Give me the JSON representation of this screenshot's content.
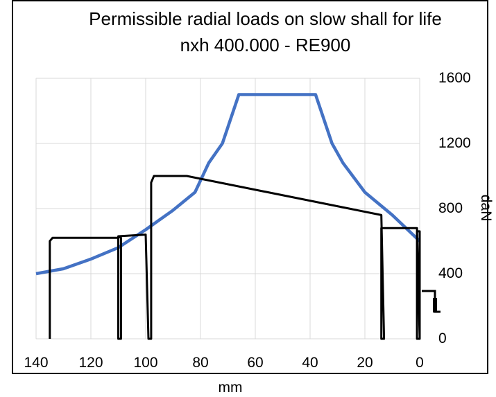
{
  "chart_data": {
    "type": "line",
    "title": "Permissible radial loads on slow shall for life",
    "subtitle": "nxh 400.000 - RE900",
    "xlabel": "mm",
    "ylabel": "daN",
    "xlim": [
      140,
      0
    ],
    "ylim": [
      0,
      1600
    ],
    "x_ticks": [
      "140",
      "120",
      "100",
      "80",
      "60",
      "40",
      "20",
      "0"
    ],
    "y_ticks": [
      "0",
      "400",
      "800",
      "1200",
      "1600"
    ],
    "grid": true,
    "series": [
      {
        "color": "#4472C4",
        "points": [
          [
            140,
            400
          ],
          [
            130,
            430
          ],
          [
            120,
            490
          ],
          [
            110,
            560
          ],
          [
            100,
            670
          ],
          [
            90,
            790
          ],
          [
            82,
            900
          ],
          [
            77,
            1080
          ],
          [
            72,
            1200
          ],
          [
            66,
            1500
          ],
          [
            38,
            1500
          ],
          [
            32,
            1200
          ],
          [
            28,
            1080
          ],
          [
            20,
            900
          ],
          [
            10,
            760
          ],
          [
            0,
            600
          ]
        ]
      },
      {
        "color": "#000000",
        "points": [
          [
            135,
            0
          ],
          [
            135,
            600
          ],
          [
            134,
            620
          ],
          [
            110,
            620
          ],
          [
            110,
            0
          ],
          [
            109,
            0
          ],
          [
            109,
            620
          ],
          [
            110,
            630
          ],
          [
            100,
            640
          ],
          [
            99,
            0
          ],
          [
            98,
            0
          ],
          [
            98,
            960
          ],
          [
            97,
            1000
          ],
          [
            85,
            1000
          ],
          [
            14,
            760
          ],
          [
            13,
            0
          ],
          [
            14,
            0
          ],
          [
            14,
            680
          ],
          [
            1,
            680
          ],
          [
            0,
            0
          ],
          [
            1,
            0
          ],
          [
            1,
            660
          ],
          [
            0,
            660
          ],
          [
            0,
            0
          ]
        ]
      }
    ]
  }
}
